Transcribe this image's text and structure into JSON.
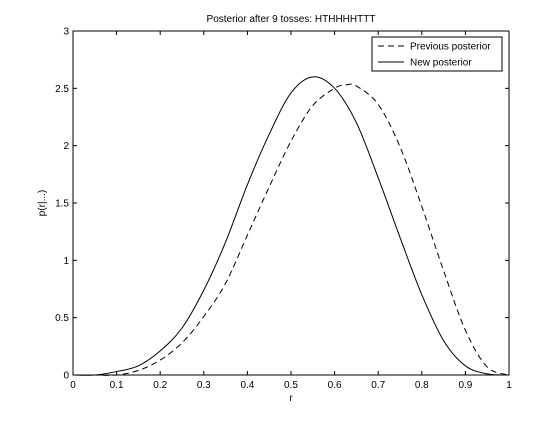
{
  "chart_data": {
    "type": "line",
    "title": "Posterior after 9 tosses: HTHHHHTTT",
    "xlabel": "r",
    "ylabel": "p(r|...)",
    "xlim": [
      0,
      1
    ],
    "ylim": [
      0,
      3
    ],
    "xticks": [
      "0",
      "0.1",
      "0.2",
      "0.3",
      "0.4",
      "0.5",
      "0.6",
      "0.7",
      "0.8",
      "0.9",
      "1"
    ],
    "yticks": [
      "0",
      "0.5",
      "1",
      "1.5",
      "2",
      "2.5",
      "3"
    ],
    "grid": false,
    "legend_position": "top-right",
    "series": [
      {
        "name": "Previous posterior",
        "style": "dashed",
        "color": "#000000",
        "x": [
          0.0,
          0.05,
          0.1,
          0.15,
          0.2,
          0.25,
          0.3,
          0.35,
          0.4,
          0.45,
          0.5,
          0.55,
          0.6,
          0.625,
          0.65,
          0.7,
          0.75,
          0.8,
          0.85,
          0.9,
          0.95,
          1.0
        ],
        "y": [
          0.0,
          0.0,
          0.0,
          0.04,
          0.13,
          0.28,
          0.51,
          0.8,
          1.22,
          1.64,
          2.04,
          2.35,
          2.5,
          2.53,
          2.52,
          2.36,
          1.99,
          1.47,
          0.91,
          0.39,
          0.07,
          0.0
        ]
      },
      {
        "name": "New posterior",
        "style": "solid",
        "color": "#000000",
        "x": [
          0.0,
          0.05,
          0.1,
          0.15,
          0.2,
          0.25,
          0.3,
          0.35,
          0.4,
          0.45,
          0.5,
          0.55,
          0.6,
          0.65,
          0.7,
          0.75,
          0.8,
          0.85,
          0.9,
          0.95,
          1.0
        ],
        "y": [
          0.0,
          0.0,
          0.03,
          0.08,
          0.21,
          0.41,
          0.74,
          1.16,
          1.66,
          2.1,
          2.46,
          2.6,
          2.5,
          2.2,
          1.72,
          1.2,
          0.7,
          0.3,
          0.08,
          0.01,
          0.0
        ]
      }
    ]
  }
}
